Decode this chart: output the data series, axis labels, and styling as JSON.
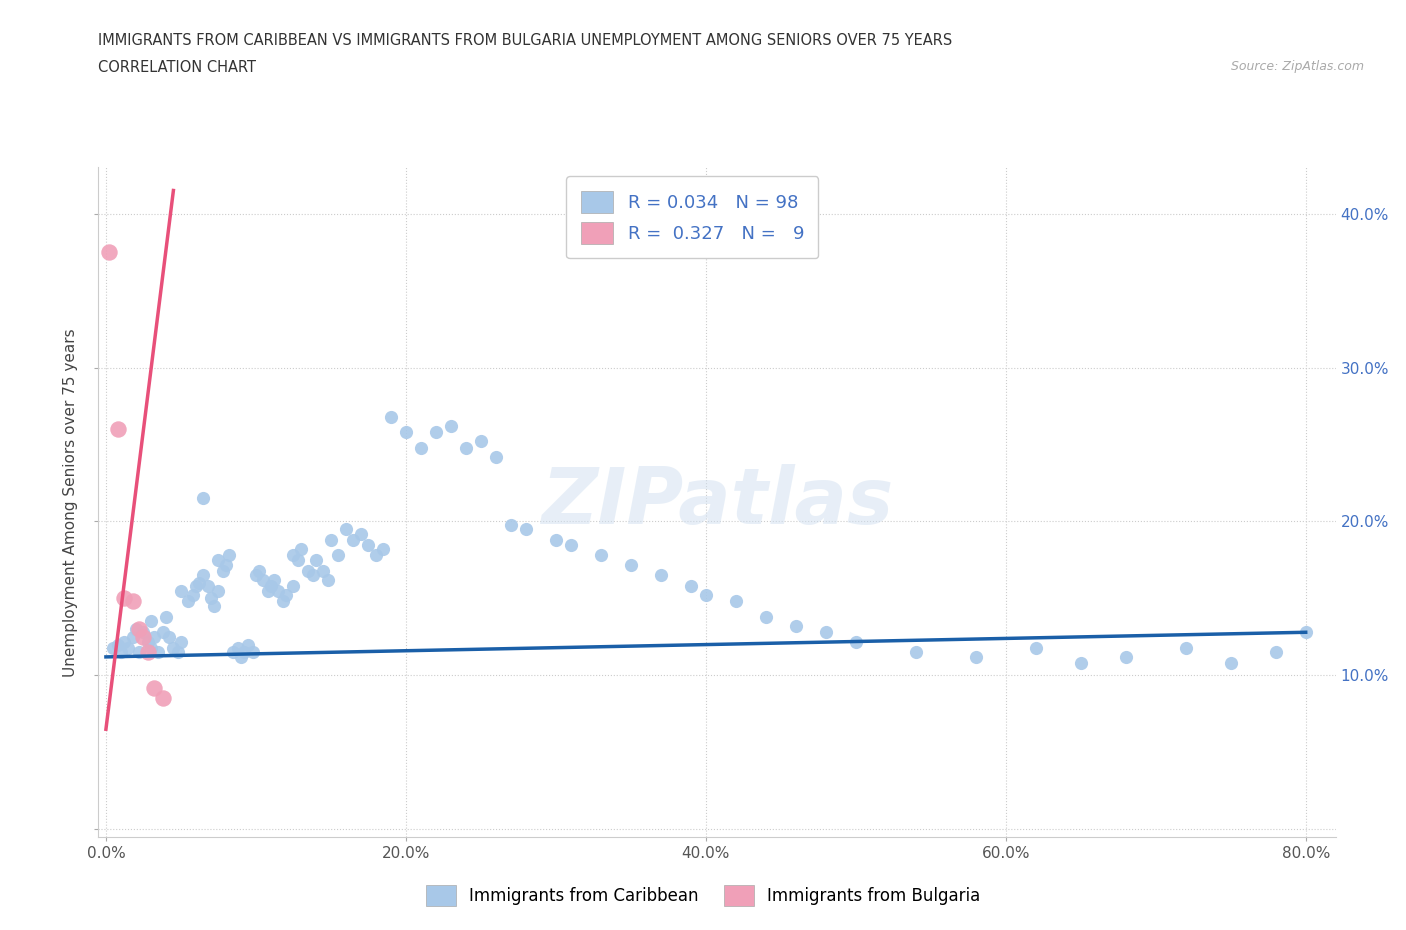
{
  "title_line1": "IMMIGRANTS FROM CARIBBEAN VS IMMIGRANTS FROM BULGARIA UNEMPLOYMENT AMONG SENIORS OVER 75 YEARS",
  "title_line2": "CORRELATION CHART",
  "source": "Source: ZipAtlas.com",
  "ylabel": "Unemployment Among Seniors over 75 years",
  "watermark": "ZIPatlas",
  "legend_label1": "Immigrants from Caribbean",
  "legend_label2": "Immigrants from Bulgaria",
  "R1": 0.034,
  "N1": 98,
  "R2": 0.327,
  "N2": 9,
  "color1": "#a8c8e8",
  "color2": "#f0a0b8",
  "trendline1_color": "#1a5fa8",
  "trendline2_color": "#e8507a",
  "xlim": [
    -0.005,
    0.82
  ],
  "ylim": [
    -0.005,
    0.43
  ],
  "xticks": [
    0.0,
    0.2,
    0.4,
    0.6,
    0.8
  ],
  "yticks": [
    0.0,
    0.1,
    0.2,
    0.3,
    0.4
  ],
  "xticklabels": [
    "0.0%",
    "20.0%",
    "40.0%",
    "60.0%",
    "80.0%"
  ],
  "yticklabels_right": [
    "10.0%",
    "20.0%",
    "30.0%",
    "40.0%"
  ],
  "yticks_right": [
    0.1,
    0.2,
    0.3,
    0.4
  ],
  "blue_scatter_x": [
    0.005,
    0.008,
    0.01,
    0.012,
    0.015,
    0.018,
    0.02,
    0.022,
    0.025,
    0.028,
    0.03,
    0.03,
    0.032,
    0.035,
    0.038,
    0.04,
    0.042,
    0.045,
    0.048,
    0.05,
    0.05,
    0.055,
    0.058,
    0.06,
    0.062,
    0.065,
    0.068,
    0.07,
    0.072,
    0.075,
    0.075,
    0.078,
    0.08,
    0.082,
    0.085,
    0.088,
    0.09,
    0.092,
    0.095,
    0.098,
    0.1,
    0.102,
    0.105,
    0.108,
    0.11,
    0.112,
    0.115,
    0.118,
    0.12,
    0.125,
    0.125,
    0.128,
    0.13,
    0.135,
    0.138,
    0.14,
    0.145,
    0.148,
    0.15,
    0.155,
    0.16,
    0.165,
    0.17,
    0.175,
    0.18,
    0.185,
    0.19,
    0.2,
    0.21,
    0.22,
    0.23,
    0.24,
    0.25,
    0.26,
    0.27,
    0.28,
    0.3,
    0.31,
    0.33,
    0.35,
    0.37,
    0.39,
    0.4,
    0.42,
    0.44,
    0.46,
    0.48,
    0.5,
    0.54,
    0.58,
    0.62,
    0.65,
    0.68,
    0.72,
    0.75,
    0.78,
    0.8,
    0.065
  ],
  "blue_scatter_y": [
    0.118,
    0.12,
    0.115,
    0.122,
    0.118,
    0.125,
    0.13,
    0.115,
    0.128,
    0.122,
    0.135,
    0.118,
    0.125,
    0.115,
    0.128,
    0.138,
    0.125,
    0.118,
    0.115,
    0.122,
    0.155,
    0.148,
    0.152,
    0.158,
    0.16,
    0.165,
    0.158,
    0.15,
    0.145,
    0.155,
    0.175,
    0.168,
    0.172,
    0.178,
    0.115,
    0.118,
    0.112,
    0.115,
    0.12,
    0.115,
    0.165,
    0.168,
    0.162,
    0.155,
    0.158,
    0.162,
    0.155,
    0.148,
    0.152,
    0.158,
    0.178,
    0.175,
    0.182,
    0.168,
    0.165,
    0.175,
    0.168,
    0.162,
    0.188,
    0.178,
    0.195,
    0.188,
    0.192,
    0.185,
    0.178,
    0.182,
    0.268,
    0.258,
    0.248,
    0.258,
    0.262,
    0.248,
    0.252,
    0.242,
    0.198,
    0.195,
    0.188,
    0.185,
    0.178,
    0.172,
    0.165,
    0.158,
    0.152,
    0.148,
    0.138,
    0.132,
    0.128,
    0.122,
    0.115,
    0.112,
    0.118,
    0.108,
    0.112,
    0.118,
    0.108,
    0.115,
    0.128,
    0.215
  ],
  "pink_scatter_x": [
    0.002,
    0.008,
    0.012,
    0.018,
    0.022,
    0.025,
    0.028,
    0.032,
    0.038
  ],
  "pink_scatter_y": [
    0.375,
    0.26,
    0.15,
    0.148,
    0.13,
    0.125,
    0.115,
    0.092,
    0.085
  ],
  "trendline1_x": [
    0.0,
    0.8
  ],
  "trendline1_y": [
    0.112,
    0.128
  ],
  "trendline2_x": [
    0.0,
    0.045
  ],
  "trendline2_y": [
    0.065,
    0.415
  ]
}
